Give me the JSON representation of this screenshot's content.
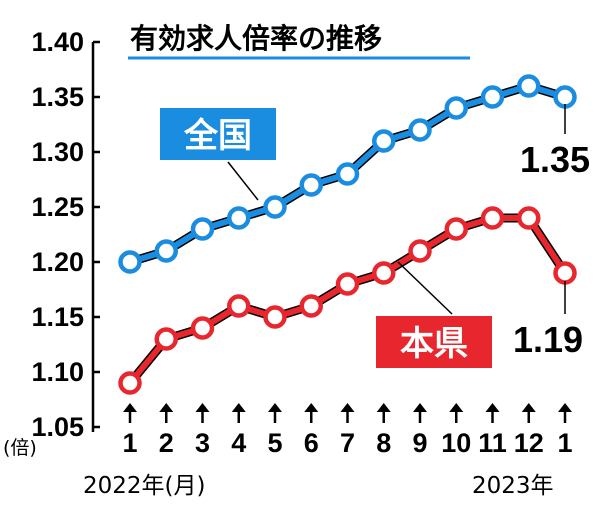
{
  "chart_data": {
    "type": "line",
    "title": "有効求人倍率の推移",
    "y_unit": "(倍)",
    "ylim": [
      1.05,
      1.4
    ],
    "yticks": [
      "1.40",
      "1.35",
      "1.30",
      "1.25",
      "1.20",
      "1.15",
      "1.10",
      "1.05"
    ],
    "categories": [
      "1",
      "2",
      "3",
      "4",
      "5",
      "6",
      "7",
      "8",
      "9",
      "10",
      "11",
      "12",
      "1"
    ],
    "x_start_label": "2022年(月)",
    "x_end_label": "2023年",
    "grid": false,
    "series": [
      {
        "name": "全国",
        "color": "#1a8de0",
        "values": [
          1.2,
          1.21,
          1.23,
          1.24,
          1.25,
          1.27,
          1.28,
          1.31,
          1.32,
          1.34,
          1.35,
          1.36,
          1.35
        ],
        "end_label": "1.35"
      },
      {
        "name": "本県",
        "color": "#e8262e",
        "values": [
          1.09,
          1.13,
          1.14,
          1.16,
          1.15,
          1.16,
          1.18,
          1.19,
          1.21,
          1.23,
          1.24,
          1.24,
          1.19
        ],
        "end_label": "1.19"
      }
    ]
  }
}
